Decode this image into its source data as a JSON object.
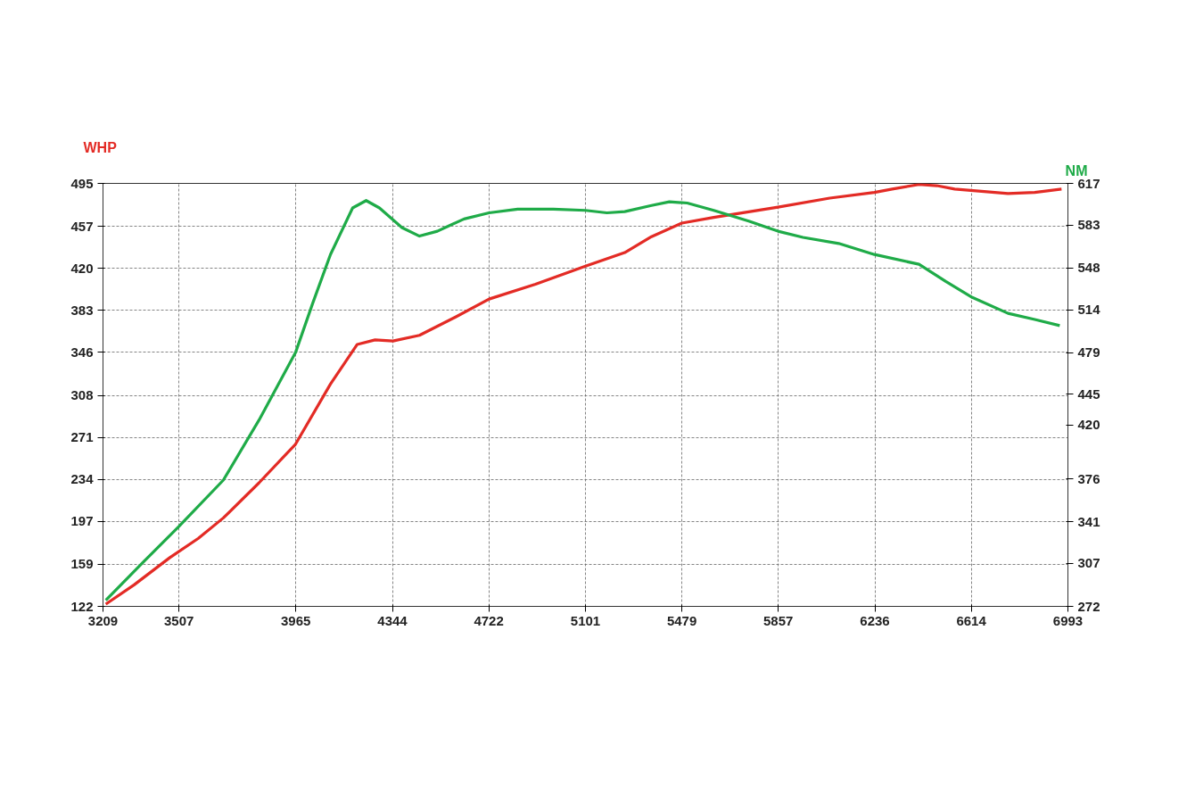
{
  "chart_data": {
    "type": "line",
    "ylabel": "WHP",
    "y2label": "NM",
    "xlim": [
      3209,
      6993
    ],
    "xticks": [
      3209,
      3507,
      3965,
      4344,
      4722,
      5101,
      5479,
      5857,
      6236,
      6614,
      6993
    ],
    "ylim": [
      122,
      495
    ],
    "yticks": [
      122,
      159,
      197,
      234,
      271,
      308,
      346,
      383,
      420,
      457,
      495
    ],
    "y2lim": [
      272,
      617
    ],
    "y2ticks": [
      272,
      307,
      341,
      376,
      420,
      445,
      479,
      514,
      548,
      583,
      617
    ],
    "grid": true,
    "line_style": "solid",
    "marker": "none",
    "series": [
      {
        "color": "#e32b25",
        "x": [
          3220,
          3331,
          3471,
          3583,
          3681,
          3821,
          3964,
          4101,
          4206,
          4276,
          4346,
          4450,
          4590,
          4723,
          4905,
          5101,
          5255,
          5360,
          5479,
          5604,
          5856,
          6059,
          6234,
          6304,
          6409,
          6479,
          6549,
          6654,
          6758,
          6863,
          6968
        ],
        "values": [
          124,
          141,
          165,
          182,
          200,
          231,
          265,
          318,
          353,
          357,
          356,
          361,
          377,
          393,
          406,
          422,
          434,
          448,
          460,
          465,
          474,
          482,
          487,
          490,
          494,
          493,
          490,
          488,
          486,
          487,
          490
        ]
      },
      {
        "color": "#1fab48",
        "axis": "y2",
        "x": [
          3220,
          3366,
          3506,
          3681,
          3821,
          3964,
          4031,
          4101,
          4188,
          4241,
          4293,
          4381,
          4450,
          4520,
          4625,
          4723,
          4835,
          4975,
          5101,
          5185,
          5255,
          5360,
          5430,
          5500,
          5604,
          5744,
          5856,
          5954,
          6094,
          6234,
          6409,
          6514,
          6618,
          6758,
          6863,
          6961
        ],
        "values": [
          277,
          308,
          337,
          375,
          424,
          479,
          519,
          559,
          597,
          603,
          597,
          581,
          574,
          578,
          588,
          593,
          596,
          596,
          595,
          593,
          594,
          599,
          602,
          601,
          595,
          586,
          578,
          573,
          568,
          559,
          551,
          537,
          524,
          511,
          506,
          501
        ]
      }
    ]
  }
}
